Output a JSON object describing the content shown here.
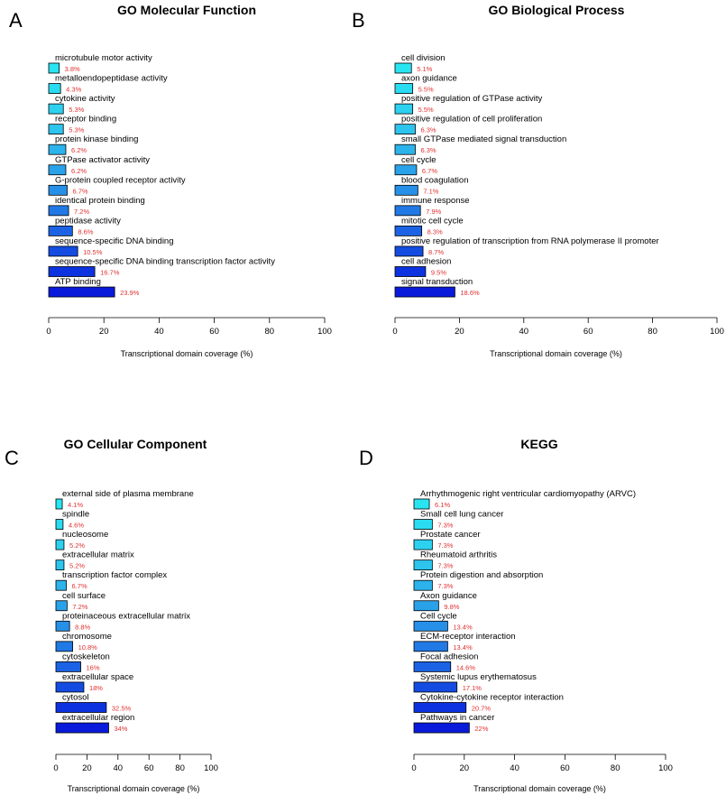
{
  "chart_data": [
    {
      "type": "bar",
      "panel": "A",
      "title": "GO Molecular Function",
      "xlabel": "Transcriptional domain coverage (%)",
      "ylabel": "",
      "xlim": [
        0,
        100
      ],
      "ticks": [
        "0",
        "20",
        "40",
        "60",
        "80",
        "100"
      ],
      "categories": [
        "microtubule motor activity",
        "metalloendopeptidase activity",
        "cytokine activity",
        "receptor binding",
        "protein kinase binding",
        "GTPase activator activity",
        "G-protein coupled receptor activity",
        "identical protein binding",
        "peptidase activity",
        "sequence-specific DNA binding",
        "sequence-specific DNA binding transcription factor activity",
        "ATP binding"
      ],
      "values": [
        3.8,
        4.3,
        5.3,
        5.3,
        6.2,
        6.2,
        6.7,
        7.2,
        8.6,
        10.5,
        16.7,
        23.9
      ],
      "labels": [
        "3.8%",
        "4.3%",
        "5.3%",
        "5.3%",
        "6.2%",
        "6.2%",
        "6.7%",
        "7.2%",
        "8.6%",
        "10.5%",
        "16.7%",
        "23.9%"
      ],
      "colors": [
        "#29e5f2",
        "#2adcf1",
        "#2cd1f0",
        "#2dc4ee",
        "#2cb3ec",
        "#2aa2ea",
        "#2690e8",
        "#2179e6",
        "#1b63e4",
        "#144ce2",
        "#0c33df",
        "#0a1adb"
      ]
    },
    {
      "type": "bar",
      "panel": "B",
      "title": "GO Biological Process",
      "xlabel": "Transcriptional domain coverage (%)",
      "ylabel": "",
      "xlim": [
        0,
        100
      ],
      "ticks": [
        "0",
        "20",
        "40",
        "60",
        "80",
        "100"
      ],
      "categories": [
        "cell division",
        "axon guidance",
        "positive regulation of GTPase activity",
        "positive regulation of cell proliferation",
        "small GTPase mediated signal transduction",
        "cell cycle",
        "blood coagulation",
        "immune response",
        "mitotic cell cycle",
        "positive regulation of transcription from RNA polymerase II promoter",
        "cell adhesion",
        "signal transduction"
      ],
      "values": [
        5.1,
        5.5,
        5.5,
        6.3,
        6.3,
        6.7,
        7.1,
        7.9,
        8.3,
        8.7,
        9.5,
        18.6
      ],
      "labels": [
        "5.1%",
        "5.5%",
        "5.5%",
        "6.3%",
        "6.3%",
        "6.7%",
        "7.1%",
        "7.9%",
        "8.3%",
        "8.7%",
        "9.5%",
        "18.6%"
      ],
      "colors": [
        "#29e5f2",
        "#2adcf1",
        "#2cd1f0",
        "#2dc4ee",
        "#2cb3ec",
        "#2aa2ea",
        "#2690e8",
        "#2179e6",
        "#1b63e4",
        "#144ce2",
        "#0c33df",
        "#0a1adb"
      ]
    },
    {
      "type": "bar",
      "panel": "C",
      "title": "GO Cellular Component",
      "xlabel": "Transcriptional domain coverage (%)",
      "ylabel": "",
      "xlim": [
        0,
        100
      ],
      "ticks": [
        "0",
        "20",
        "40",
        "60",
        "80",
        "100"
      ],
      "categories": [
        "external side of plasma membrane",
        "spindle",
        "nucleosome",
        "extracellular matrix",
        "transcription factor complex",
        "cell surface",
        "proteinaceous extracellular matrix",
        "chromosome",
        "cytoskeleton",
        "extracellular space",
        "cytosol",
        "extracellular region"
      ],
      "values": [
        4.1,
        4.6,
        5.2,
        5.2,
        6.7,
        7.2,
        8.8,
        10.8,
        16,
        18,
        32.5,
        34
      ],
      "labels": [
        "4.1%",
        "4.6%",
        "5.2%",
        "5.2%",
        "6.7%",
        "7.2%",
        "8.8%",
        "10.8%",
        "16%",
        "18%",
        "32.5%",
        "34%"
      ],
      "colors": [
        "#29e5f2",
        "#2adcf1",
        "#2cd1f0",
        "#2dc4ee",
        "#2cb3ec",
        "#2aa2ea",
        "#2690e8",
        "#2179e6",
        "#1b63e4",
        "#144ce2",
        "#0c33df",
        "#0a1adb"
      ]
    },
    {
      "type": "bar",
      "panel": "D",
      "title": "KEGG",
      "xlabel": "Transcriptional domain coverage (%)",
      "ylabel": "",
      "xlim": [
        0,
        100
      ],
      "ticks": [
        "0",
        "20",
        "40",
        "60",
        "80",
        "100"
      ],
      "categories": [
        "Arrhythmogenic right ventricular cardiomyopathy (ARVC)",
        "Small cell lung cancer",
        "Prostate cancer",
        "Rheumatoid arthritis",
        "Protein digestion and absorption",
        "Axon guidance",
        "Cell cycle",
        "ECM-receptor interaction",
        "Focal adhesion",
        "Systemic lupus erythematosus",
        "Cytokine-cytokine receptor interaction",
        "Pathways in cancer"
      ],
      "values": [
        6.1,
        7.3,
        7.3,
        7.3,
        7.3,
        9.8,
        13.4,
        13.4,
        14.6,
        17.1,
        20.7,
        22
      ],
      "labels": [
        "6.1%",
        "7.3%",
        "7.3%",
        "7.3%",
        "7.3%",
        "9.8%",
        "13.4%",
        "13.4%",
        "14.6%",
        "17.1%",
        "20.7%",
        "22%"
      ],
      "colors": [
        "#29e5f2",
        "#2adcf1",
        "#2cd1f0",
        "#2dc4ee",
        "#2cb3ec",
        "#2aa2ea",
        "#2690e8",
        "#2179e6",
        "#1b63e4",
        "#144ce2",
        "#0c33df",
        "#0a1adb"
      ]
    }
  ]
}
